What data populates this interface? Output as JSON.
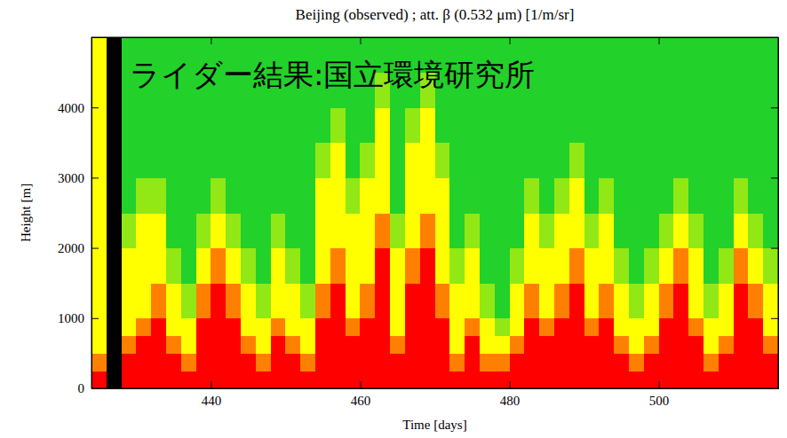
{
  "chart_data": {
    "type": "heatmap",
    "title": "Beijing (observed) ; att. β (0.532 μm) [1/m/sr]",
    "annotation": "ライダー結果:国立環境研究所",
    "x_label": "Time [days]",
    "y_label": "Height [m]",
    "xlim": [
      424,
      516
    ],
    "ylim": [
      0,
      5000
    ],
    "xticks": [
      440,
      460,
      480,
      500
    ],
    "yticks": [
      0,
      1000,
      2000,
      3000,
      4000
    ],
    "zlim": [
      -7,
      -5
    ],
    "x_bins": [
      424,
      426,
      428,
      430,
      432,
      434,
      436,
      438,
      440,
      442,
      444,
      446,
      448,
      450,
      452,
      454,
      456,
      458,
      460,
      462,
      464,
      466,
      468,
      470,
      472,
      474,
      476,
      478,
      480,
      482,
      484,
      486,
      488,
      490,
      492,
      494,
      496,
      498,
      500,
      502,
      504,
      506,
      508,
      510,
      512,
      514,
      516
    ],
    "y_bins": [
      0,
      250,
      500,
      750,
      1000,
      1500,
      2000,
      2500,
      3000,
      3500,
      4000,
      4500,
      5000
    ],
    "values": [
      [
        -5,
        -5.5,
        -6,
        -6,
        -6,
        -6,
        -6,
        -6,
        -6,
        -6,
        -6,
        -6
      ],
      [
        null,
        null,
        null,
        null,
        null,
        null,
        null,
        null,
        null,
        null,
        null,
        null
      ],
      [
        -5,
        -5,
        -5.5,
        -6,
        -6,
        -6,
        -6.5,
        -7,
        -7,
        -7,
        -7,
        -7
      ],
      [
        -5,
        -5,
        -5,
        -5.5,
        -6,
        -6,
        -6,
        -6.5,
        -7,
        -7,
        -7,
        -7
      ],
      [
        -5,
        -5,
        -5,
        -5,
        -5.5,
        -6,
        -6,
        -6.5,
        -7,
        -7,
        -7,
        -7
      ],
      [
        -5,
        -5,
        -5.5,
        -6,
        -6,
        -6.5,
        -7,
        -7,
        -7,
        -7,
        -7,
        -7
      ],
      [
        -5,
        -5.5,
        -6,
        -6,
        -6.5,
        -7,
        -7,
        -7,
        -7,
        -7,
        -7,
        -7
      ],
      [
        -5,
        -5,
        -5,
        -5,
        -5.5,
        -6,
        -6.5,
        -7,
        -7,
        -7,
        -7,
        -7
      ],
      [
        -5,
        -5,
        -5,
        -5,
        -5,
        -5.5,
        -6,
        -6.5,
        -7,
        -7,
        -7,
        -7
      ],
      [
        -5,
        -5,
        -5,
        -5,
        -5.5,
        -6,
        -6.5,
        -7,
        -7,
        -7,
        -7,
        -7
      ],
      [
        -5,
        -5,
        -5.5,
        -6,
        -6,
        -6.5,
        -7,
        -7,
        -7,
        -7,
        -7,
        -7
      ],
      [
        -5,
        -5.5,
        -6,
        -6,
        -6.5,
        -7,
        -7,
        -7,
        -7,
        -7,
        -7,
        -7
      ],
      [
        -5,
        -5,
        -5,
        -5.5,
        -6,
        -6,
        -6.5,
        -7,
        -7,
        -7,
        -7,
        -7
      ],
      [
        -5,
        -5,
        -5.5,
        -6,
        -6,
        -6.5,
        -7,
        -7,
        -7,
        -7,
        -7,
        -7
      ],
      [
        -5,
        -5.5,
        -6,
        -6,
        -6.5,
        -7,
        -7,
        -7,
        -7,
        -7,
        -7,
        -7
      ],
      [
        -5,
        -5,
        -5,
        -5,
        -5.5,
        -6,
        -6,
        -6,
        -6.5,
        -7,
        -7,
        -7
      ],
      [
        -5,
        -5,
        -5,
        -5,
        -5,
        -5.5,
        -6,
        -6,
        -6,
        -6.5,
        -7,
        -7
      ],
      [
        -5,
        -5,
        -5,
        -5.5,
        -6,
        -6,
        -6,
        -6.5,
        -7,
        -7,
        -7,
        -7
      ],
      [
        -5,
        -5,
        -5,
        -5,
        -5.5,
        -6,
        -6,
        -6,
        -6.5,
        -7,
        -7,
        -7
      ],
      [
        -5,
        -5,
        -5,
        -5,
        -5,
        -5,
        -5.5,
        -6,
        -6,
        -6,
        -6.5,
        -7
      ],
      [
        -5,
        -5,
        -5.5,
        -6,
        -6,
        -6,
        -6.5,
        -7,
        -7,
        -7,
        -7,
        -7
      ],
      [
        -5,
        -5,
        -5,
        -5,
        -5,
        -5.5,
        -6,
        -6,
        -6,
        -6.5,
        -7,
        -7
      ],
      [
        -5,
        -5,
        -5,
        -5,
        -5,
        -5,
        -5.5,
        -6,
        -6,
        -6,
        -6.5,
        -7
      ],
      [
        -5,
        -5,
        -5,
        -5,
        -5.5,
        -6,
        -6,
        -6,
        -6.5,
        -7,
        -7,
        -7
      ],
      [
        -5,
        -5.5,
        -6,
        -6,
        -6,
        -6.5,
        -7,
        -7,
        -7,
        -7,
        -7,
        -7
      ],
      [
        -5,
        -5,
        -5,
        -5.5,
        -6,
        -6,
        -6.5,
        -7,
        -7,
        -7,
        -7,
        -7
      ],
      [
        -5,
        -5.5,
        -6,
        -6,
        -6.5,
        -7,
        -7,
        -7,
        -7,
        -7,
        -7,
        -7
      ],
      [
        -5,
        -5.5,
        -6,
        -6.5,
        -7,
        -7,
        -7,
        -7,
        -7,
        -7,
        -7,
        -7
      ],
      [
        -5,
        -5,
        -5.5,
        -6,
        -6,
        -6.5,
        -7,
        -7,
        -7,
        -7,
        -7,
        -7
      ],
      [
        -5,
        -5,
        -5,
        -5,
        -5.5,
        -6,
        -6,
        -6.5,
        -7,
        -7,
        -7,
        -7
      ],
      [
        -5,
        -5,
        -5,
        -5.5,
        -6,
        -6,
        -6.5,
        -7,
        -7,
        -7,
        -7,
        -7
      ],
      [
        -5,
        -5,
        -5,
        -5,
        -5.5,
        -6,
        -6,
        -6.5,
        -7,
        -7,
        -7,
        -7
      ],
      [
        -5,
        -5,
        -5,
        -5,
        -5,
        -5.5,
        -6,
        -6,
        -6.5,
        -7,
        -7,
        -7
      ],
      [
        -5,
        -5,
        -5,
        -5.5,
        -6,
        -6,
        -6.5,
        -7,
        -7,
        -7,
        -7,
        -7
      ],
      [
        -5,
        -5,
        -5,
        -5,
        -5.5,
        -6,
        -6,
        -6.5,
        -7,
        -7,
        -7,
        -7
      ],
      [
        -5,
        -5,
        -5.5,
        -6,
        -6,
        -6.5,
        -7,
        -7,
        -7,
        -7,
        -7,
        -7
      ],
      [
        -5,
        -5.5,
        -6,
        -6,
        -6.5,
        -7,
        -7,
        -7,
        -7,
        -7,
        -7,
        -7
      ],
      [
        -5,
        -5,
        -5.5,
        -6,
        -6,
        -6.5,
        -7,
        -7,
        -7,
        -7,
        -7,
        -7
      ],
      [
        -5,
        -5,
        -5,
        -5,
        -5.5,
        -6,
        -6.5,
        -7,
        -7,
        -7,
        -7,
        -7
      ],
      [
        -5,
        -5,
        -5,
        -5,
        -5,
        -5.5,
        -6,
        -6.5,
        -7,
        -7,
        -7,
        -7
      ],
      [
        -5,
        -5,
        -5,
        -5.5,
        -6,
        -6,
        -6.5,
        -7,
        -7,
        -7,
        -7,
        -7
      ],
      [
        -5,
        -5.5,
        -6,
        -6,
        -6.5,
        -7,
        -7,
        -7,
        -7,
        -7,
        -7,
        -7
      ],
      [
        -5,
        -5,
        -5.5,
        -6,
        -6,
        -6.5,
        -7,
        -7,
        -7,
        -7,
        -7,
        -7
      ],
      [
        -5,
        -5,
        -5,
        -5,
        -5,
        -5.5,
        -6,
        -6.5,
        -7,
        -7,
        -7,
        -7
      ],
      [
        -5,
        -5,
        -5,
        -5,
        -5.5,
        -6,
        -6.5,
        -7,
        -7,
        -7,
        -7,
        -7
      ],
      [
        -5,
        -5,
        -5.5,
        -6,
        -6,
        -6.5,
        -7,
        -7,
        -7,
        -7,
        -7,
        -7
      ]
    ]
  }
}
